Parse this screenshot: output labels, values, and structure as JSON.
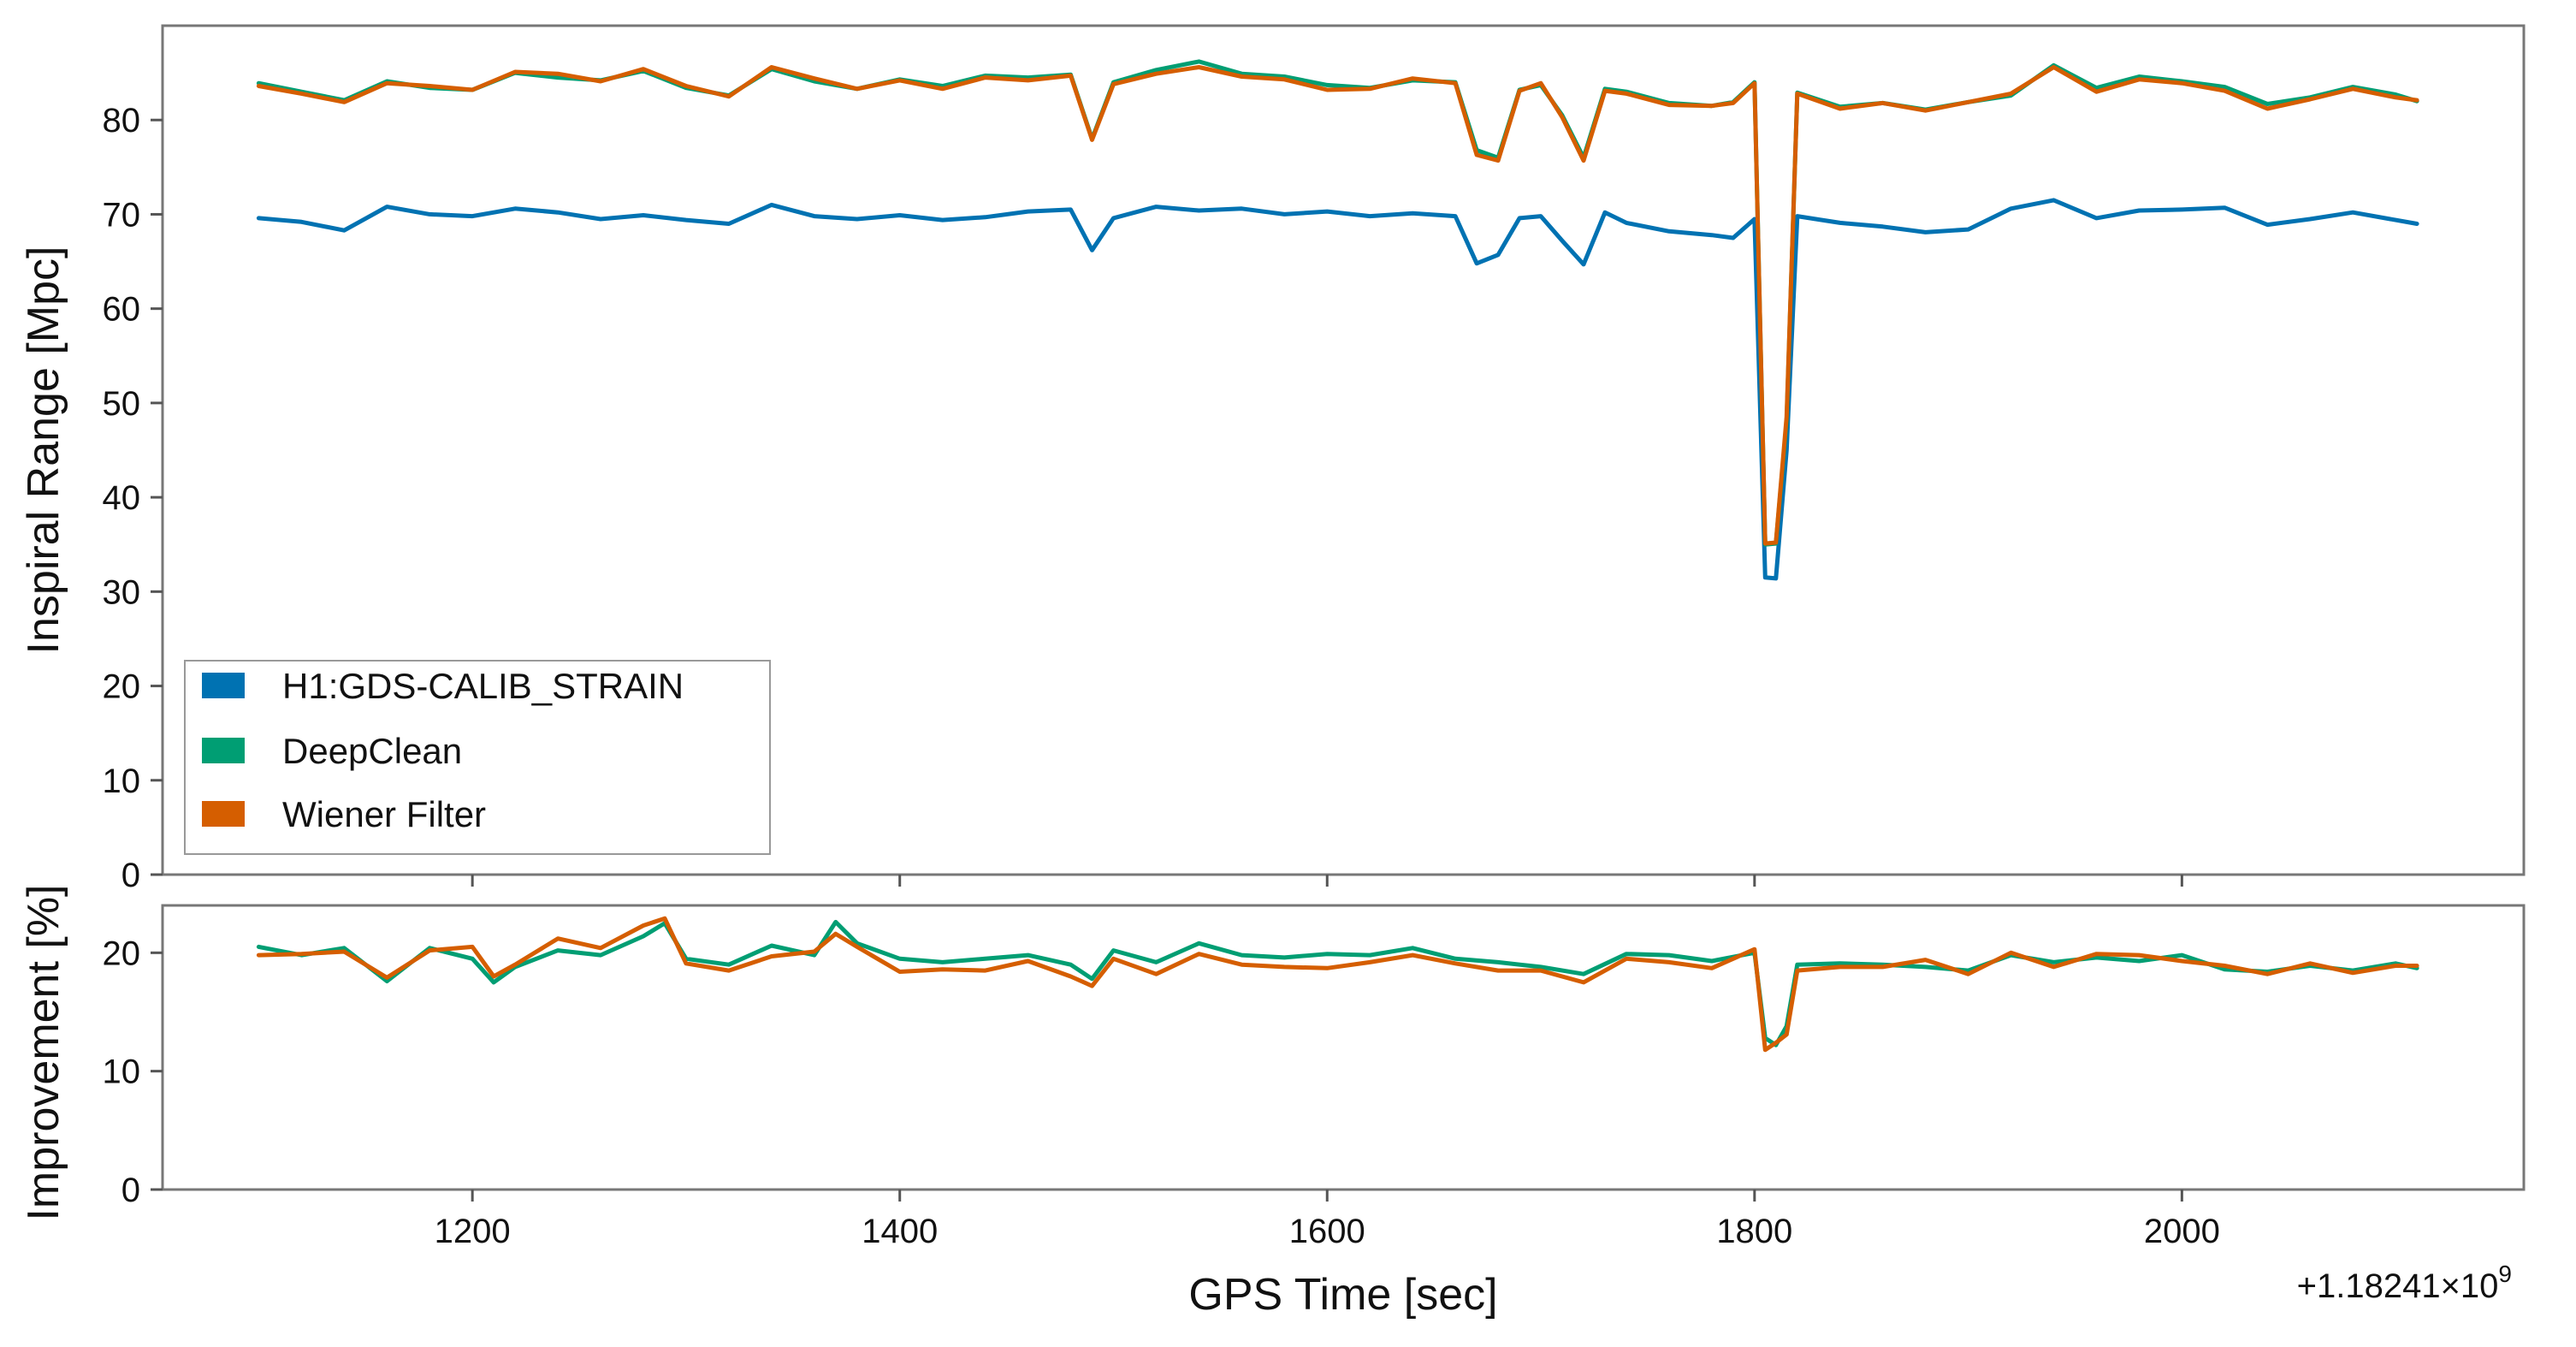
{
  "chart_data": [
    {
      "type": "line",
      "panel": "top",
      "xlabel": "",
      "ylabel": "Inspiral Range [Mpc]",
      "xlim": [
        1055,
        2160
      ],
      "ylim": [
        0,
        90
      ],
      "xticks": [
        1200,
        1400,
        1600,
        1800,
        2000
      ],
      "yticks": [
        0,
        10,
        20,
        30,
        40,
        50,
        60,
        70,
        80
      ],
      "ytick_labels": [
        "0",
        "10",
        "20",
        "30",
        "40",
        "50",
        "60",
        "70",
        "80"
      ],
      "grid": false,
      "legend": {
        "placement": "lower-left",
        "entries": [
          {
            "label": "H1:GDS-CALIB_STRAIN",
            "color": "#0072b2"
          },
          {
            "label": "DeepClean",
            "color": "#009e73"
          },
          {
            "label": "Wiener Filter",
            "color": "#d55e00"
          }
        ]
      },
      "x": [
        1100,
        1120,
        1140,
        1160,
        1180,
        1200,
        1220,
        1240,
        1260,
        1280,
        1300,
        1320,
        1340,
        1360,
        1380,
        1400,
        1420,
        1440,
        1460,
        1480,
        1490,
        1500,
        1520,
        1540,
        1560,
        1580,
        1600,
        1620,
        1640,
        1660,
        1670,
        1680,
        1690,
        1700,
        1710,
        1720,
        1730,
        1740,
        1760,
        1780,
        1790,
        1800,
        1805,
        1810,
        1815,
        1820,
        1840,
        1860,
        1880,
        1900,
        1920,
        1940,
        1960,
        1980,
        2000,
        2020,
        2040,
        2060,
        2080,
        2100,
        2110
      ],
      "series": [
        {
          "name": "H1:GDS-CALIB_STRAIN",
          "color": "#0072b2",
          "values": [
            69.6,
            69.2,
            68.3,
            70.8,
            70.0,
            69.8,
            70.6,
            70.2,
            69.5,
            69.9,
            69.4,
            69.0,
            71.0,
            69.8,
            69.5,
            69.9,
            69.4,
            69.7,
            70.3,
            70.5,
            66.2,
            69.6,
            70.8,
            70.4,
            70.6,
            70.0,
            70.3,
            69.8,
            70.1,
            69.8,
            64.8,
            65.7,
            69.6,
            69.8,
            67.2,
            64.7,
            70.2,
            69.1,
            68.2,
            67.8,
            67.5,
            69.5,
            31.5,
            31.4,
            45.0,
            69.8,
            69.1,
            68.7,
            68.1,
            68.4,
            70.6,
            71.5,
            69.6,
            70.4,
            70.5,
            70.7,
            68.9,
            69.5,
            70.2,
            69.4,
            69.0
          ]
        },
        {
          "name": "DeepClean",
          "color": "#009e73",
          "values": [
            83.9,
            83.0,
            82.1,
            84.1,
            83.4,
            83.2,
            85.0,
            84.5,
            84.2,
            85.2,
            83.4,
            82.6,
            85.4,
            84.1,
            83.3,
            84.3,
            83.6,
            84.7,
            84.5,
            84.8,
            78.0,
            84.0,
            85.3,
            86.2,
            84.9,
            84.6,
            83.7,
            83.4,
            84.2,
            84.0,
            76.8,
            76.0,
            83.2,
            83.7,
            80.5,
            76.0,
            83.3,
            83.0,
            81.8,
            81.5,
            81.9,
            84.0,
            35.0,
            35.1,
            48.0,
            82.9,
            81.4,
            81.8,
            81.1,
            81.9,
            82.6,
            85.8,
            83.4,
            84.6,
            84.1,
            83.5,
            81.7,
            82.4,
            83.5,
            82.7,
            82.0
          ]
        },
        {
          "name": "Wiener Filter",
          "color": "#d55e00",
          "values": [
            83.6,
            82.8,
            81.9,
            83.9,
            83.6,
            83.2,
            85.1,
            84.9,
            84.1,
            85.4,
            83.6,
            82.5,
            85.6,
            84.4,
            83.3,
            84.2,
            83.3,
            84.5,
            84.2,
            84.7,
            77.9,
            83.8,
            84.9,
            85.6,
            84.6,
            84.3,
            83.2,
            83.3,
            84.4,
            83.9,
            76.3,
            75.7,
            83.1,
            83.9,
            80.3,
            75.7,
            83.1,
            82.8,
            81.6,
            81.5,
            81.8,
            83.9,
            35.1,
            35.2,
            48.5,
            82.8,
            81.2,
            81.8,
            81.0,
            81.9,
            82.8,
            85.6,
            83.0,
            84.3,
            83.9,
            83.1,
            81.2,
            82.2,
            83.3,
            82.4,
            82.1
          ]
        }
      ]
    },
    {
      "type": "line",
      "panel": "bottom",
      "xlabel": "GPS Time [sec]",
      "ylabel": "Improvement [%]",
      "xlim": [
        1055,
        2160
      ],
      "ylim": [
        0,
        24
      ],
      "xticks": [
        1200,
        1400,
        1600,
        1800,
        2000
      ],
      "xtick_labels": [
        "1200",
        "1400",
        "1600",
        "1800",
        "2000"
      ],
      "yticks": [
        0,
        10,
        20
      ],
      "ytick_labels": [
        "0",
        "10",
        "20"
      ],
      "x_offset_label": "+1.18241×10",
      "x_offset_exponent": "9",
      "grid": false,
      "x": [
        1100,
        1120,
        1140,
        1160,
        1180,
        1200,
        1210,
        1220,
        1240,
        1260,
        1280,
        1290,
        1300,
        1320,
        1340,
        1360,
        1370,
        1380,
        1400,
        1420,
        1440,
        1460,
        1480,
        1490,
        1500,
        1520,
        1540,
        1560,
        1580,
        1600,
        1620,
        1640,
        1660,
        1680,
        1700,
        1720,
        1740,
        1760,
        1780,
        1800,
        1805,
        1810,
        1815,
        1820,
        1840,
        1860,
        1880,
        1900,
        1920,
        1940,
        1960,
        1980,
        2000,
        2020,
        2040,
        2060,
        2080,
        2100,
        2110
      ],
      "series": [
        {
          "name": "DeepClean",
          "color": "#009e73",
          "values": [
            20.5,
            19.8,
            20.4,
            17.6,
            20.4,
            19.5,
            17.5,
            18.8,
            20.2,
            19.8,
            21.4,
            22.5,
            19.5,
            19.0,
            20.6,
            19.8,
            22.6,
            20.8,
            19.5,
            19.2,
            19.5,
            19.8,
            19.0,
            17.8,
            20.2,
            19.2,
            20.8,
            19.8,
            19.6,
            19.9,
            19.8,
            20.4,
            19.5,
            19.2,
            18.8,
            18.2,
            19.9,
            19.8,
            19.3,
            20.0,
            12.8,
            12.2,
            13.8,
            19.0,
            19.1,
            19.0,
            18.8,
            18.5,
            19.8,
            19.2,
            19.6,
            19.3,
            19.8,
            18.6,
            18.4,
            18.9,
            18.5,
            19.1,
            18.7
          ]
        },
        {
          "name": "Wiener Filter",
          "color": "#d55e00",
          "values": [
            19.8,
            19.9,
            20.1,
            17.9,
            20.2,
            20.5,
            18.0,
            19.0,
            21.2,
            20.4,
            22.3,
            22.9,
            19.1,
            18.5,
            19.7,
            20.1,
            21.6,
            20.5,
            18.4,
            18.6,
            18.5,
            19.3,
            18.0,
            17.2,
            19.5,
            18.2,
            19.9,
            19.0,
            18.8,
            18.7,
            19.2,
            19.8,
            19.1,
            18.5,
            18.5,
            17.5,
            19.5,
            19.2,
            18.7,
            20.3,
            11.8,
            12.4,
            13.1,
            18.5,
            18.8,
            18.8,
            19.4,
            18.2,
            20.0,
            18.8,
            19.9,
            19.8,
            19.3,
            18.9,
            18.2,
            19.1,
            18.3,
            18.9,
            18.9
          ]
        }
      ]
    }
  ]
}
